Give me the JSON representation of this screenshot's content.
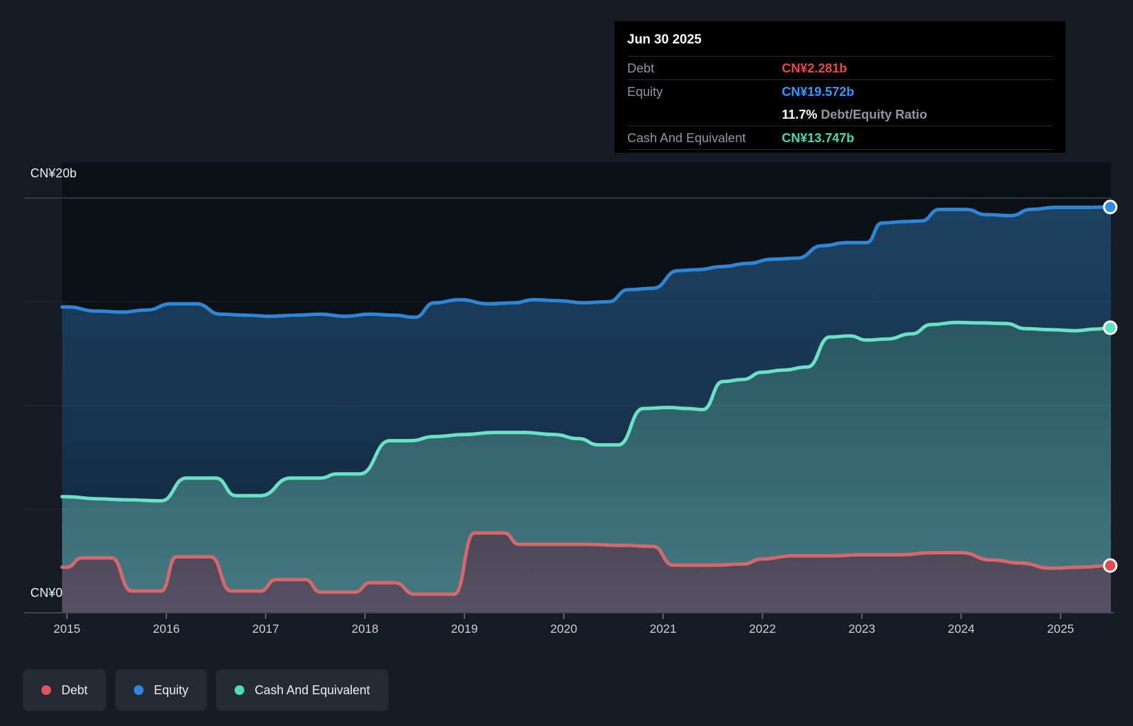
{
  "y_axis": {
    "top_label": "CN¥20b",
    "bottom_label": "CN¥0"
  },
  "x_axis": {
    "years": [
      "2015",
      "2016",
      "2017",
      "2018",
      "2019",
      "2020",
      "2021",
      "2022",
      "2023",
      "2024",
      "2025"
    ]
  },
  "tooltip": {
    "date": "Jun 30 2025",
    "rows": [
      {
        "label": "Debt",
        "value": "CN¥2.281b",
        "color": "#e8474c"
      },
      {
        "label": "Equity",
        "value": "CN¥19.572b",
        "color": "#2e9bff"
      },
      {
        "label": "",
        "value_bold": "11.7%",
        "value_rest": " Debt/Equity Ratio"
      },
      {
        "label": "Cash And Equivalent",
        "value": "CN¥13.747b",
        "color": "#3fdbb2"
      }
    ]
  },
  "legend": [
    {
      "label": "Debt",
      "color": "#e25459"
    },
    {
      "label": "Equity",
      "color": "#2b85dd"
    },
    {
      "label": "Cash And Equivalent",
      "color": "#4ddcb9"
    }
  ],
  "chart_data": {
    "type": "area",
    "x_unit": "decimal_year",
    "x_range": [
      2015,
      2025.5
    ],
    "ylim_billions": [
      0,
      20
    ],
    "y_tick_labels": [
      "CN¥0",
      "CN¥20b"
    ],
    "gridlines_billions": [
      5,
      10,
      15,
      20
    ],
    "grid": true,
    "legend_position": "bottom-left",
    "last_point_date": "Jun 30 2025",
    "series": [
      {
        "name": "Equity",
        "color": "#2e86d7",
        "marker_color": "#2f8de2",
        "gradient": [
          "#1f4262",
          "#10263c"
        ],
        "points": [
          [
            2015.0,
            14.75
          ],
          [
            2015.3,
            14.55
          ],
          [
            2015.55,
            14.5
          ],
          [
            2015.8,
            14.6
          ],
          [
            2016.05,
            14.9
          ],
          [
            2016.3,
            14.9
          ],
          [
            2016.55,
            14.4
          ],
          [
            2016.8,
            14.35
          ],
          [
            2017.05,
            14.3
          ],
          [
            2017.3,
            14.35
          ],
          [
            2017.55,
            14.4
          ],
          [
            2017.8,
            14.3
          ],
          [
            2018.05,
            14.4
          ],
          [
            2018.3,
            14.35
          ],
          [
            2018.5,
            14.25
          ],
          [
            2018.7,
            14.95
          ],
          [
            2018.95,
            15.1
          ],
          [
            2019.25,
            14.9
          ],
          [
            2019.5,
            14.95
          ],
          [
            2019.7,
            15.1
          ],
          [
            2019.95,
            15.05
          ],
          [
            2020.2,
            14.95
          ],
          [
            2020.45,
            15.0
          ],
          [
            2020.65,
            15.58
          ],
          [
            2020.9,
            15.65
          ],
          [
            2021.15,
            16.5
          ],
          [
            2021.35,
            16.55
          ],
          [
            2021.6,
            16.7
          ],
          [
            2021.85,
            16.85
          ],
          [
            2022.1,
            17.05
          ],
          [
            2022.35,
            17.1
          ],
          [
            2022.6,
            17.7
          ],
          [
            2022.85,
            17.85
          ],
          [
            2023.05,
            17.85
          ],
          [
            2023.2,
            18.8
          ],
          [
            2023.45,
            18.87
          ],
          [
            2023.6,
            18.9
          ],
          [
            2023.78,
            19.45
          ],
          [
            2024.05,
            19.45
          ],
          [
            2024.25,
            19.2
          ],
          [
            2024.5,
            19.15
          ],
          [
            2024.7,
            19.45
          ],
          [
            2024.95,
            19.55
          ],
          [
            2025.25,
            19.55
          ],
          [
            2025.5,
            19.572
          ]
        ]
      },
      {
        "name": "Cash And Equivalent",
        "color": "#68e2c2",
        "marker_color": "#5fe0c0",
        "gradient": [
          "#1e4854",
          "#457a82"
        ],
        "points": [
          [
            2015.0,
            5.6
          ],
          [
            2015.3,
            5.5
          ],
          [
            2015.6,
            5.45
          ],
          [
            2015.95,
            5.4
          ],
          [
            2016.2,
            6.5
          ],
          [
            2016.5,
            6.5
          ],
          [
            2016.7,
            5.65
          ],
          [
            2016.95,
            5.65
          ],
          [
            2017.25,
            6.5
          ],
          [
            2017.55,
            6.5
          ],
          [
            2017.72,
            6.7
          ],
          [
            2017.95,
            6.7
          ],
          [
            2018.25,
            8.3
          ],
          [
            2018.45,
            8.3
          ],
          [
            2018.7,
            8.5
          ],
          [
            2019.0,
            8.6
          ],
          [
            2019.3,
            8.7
          ],
          [
            2019.6,
            8.7
          ],
          [
            2019.9,
            8.6
          ],
          [
            2020.15,
            8.4
          ],
          [
            2020.35,
            8.1
          ],
          [
            2020.55,
            8.1
          ],
          [
            2020.8,
            9.85
          ],
          [
            2021.05,
            9.9
          ],
          [
            2021.25,
            9.85
          ],
          [
            2021.4,
            9.8
          ],
          [
            2021.6,
            11.15
          ],
          [
            2021.8,
            11.25
          ],
          [
            2022.0,
            11.6
          ],
          [
            2022.2,
            11.7
          ],
          [
            2022.45,
            11.85
          ],
          [
            2022.68,
            13.3
          ],
          [
            2022.88,
            13.35
          ],
          [
            2023.05,
            13.15
          ],
          [
            2023.25,
            13.2
          ],
          [
            2023.5,
            13.45
          ],
          [
            2023.7,
            13.9
          ],
          [
            2023.95,
            14.0
          ],
          [
            2024.2,
            13.98
          ],
          [
            2024.45,
            13.95
          ],
          [
            2024.65,
            13.7
          ],
          [
            2024.9,
            13.65
          ],
          [
            2025.15,
            13.6
          ],
          [
            2025.35,
            13.68
          ],
          [
            2025.5,
            13.747
          ]
        ]
      },
      {
        "name": "Debt",
        "color": "#d5686d",
        "marker_color": "#e04a52",
        "gradient": [
          "#45424d",
          "#575166"
        ],
        "points": [
          [
            2015.0,
            2.2
          ],
          [
            2015.15,
            2.65
          ],
          [
            2015.45,
            2.65
          ],
          [
            2015.65,
            1.05
          ],
          [
            2015.95,
            1.05
          ],
          [
            2016.1,
            2.7
          ],
          [
            2016.45,
            2.7
          ],
          [
            2016.65,
            1.05
          ],
          [
            2016.95,
            1.05
          ],
          [
            2017.1,
            1.6
          ],
          [
            2017.4,
            1.6
          ],
          [
            2017.55,
            1.0
          ],
          [
            2017.9,
            1.0
          ],
          [
            2018.05,
            1.45
          ],
          [
            2018.3,
            1.45
          ],
          [
            2018.5,
            0.9
          ],
          [
            2018.9,
            0.9
          ],
          [
            2019.1,
            3.85
          ],
          [
            2019.4,
            3.85
          ],
          [
            2019.55,
            3.3
          ],
          [
            2019.9,
            3.3
          ],
          [
            2020.2,
            3.3
          ],
          [
            2020.6,
            3.25
          ],
          [
            2020.9,
            3.2
          ],
          [
            2021.1,
            2.3
          ],
          [
            2021.5,
            2.3
          ],
          [
            2021.8,
            2.35
          ],
          [
            2022.0,
            2.6
          ],
          [
            2022.3,
            2.75
          ],
          [
            2022.7,
            2.75
          ],
          [
            2023.0,
            2.8
          ],
          [
            2023.4,
            2.8
          ],
          [
            2023.7,
            2.9
          ],
          [
            2024.0,
            2.9
          ],
          [
            2024.3,
            2.55
          ],
          [
            2024.6,
            2.4
          ],
          [
            2024.9,
            2.15
          ],
          [
            2025.2,
            2.2
          ],
          [
            2025.5,
            2.281
          ]
        ]
      }
    ]
  }
}
